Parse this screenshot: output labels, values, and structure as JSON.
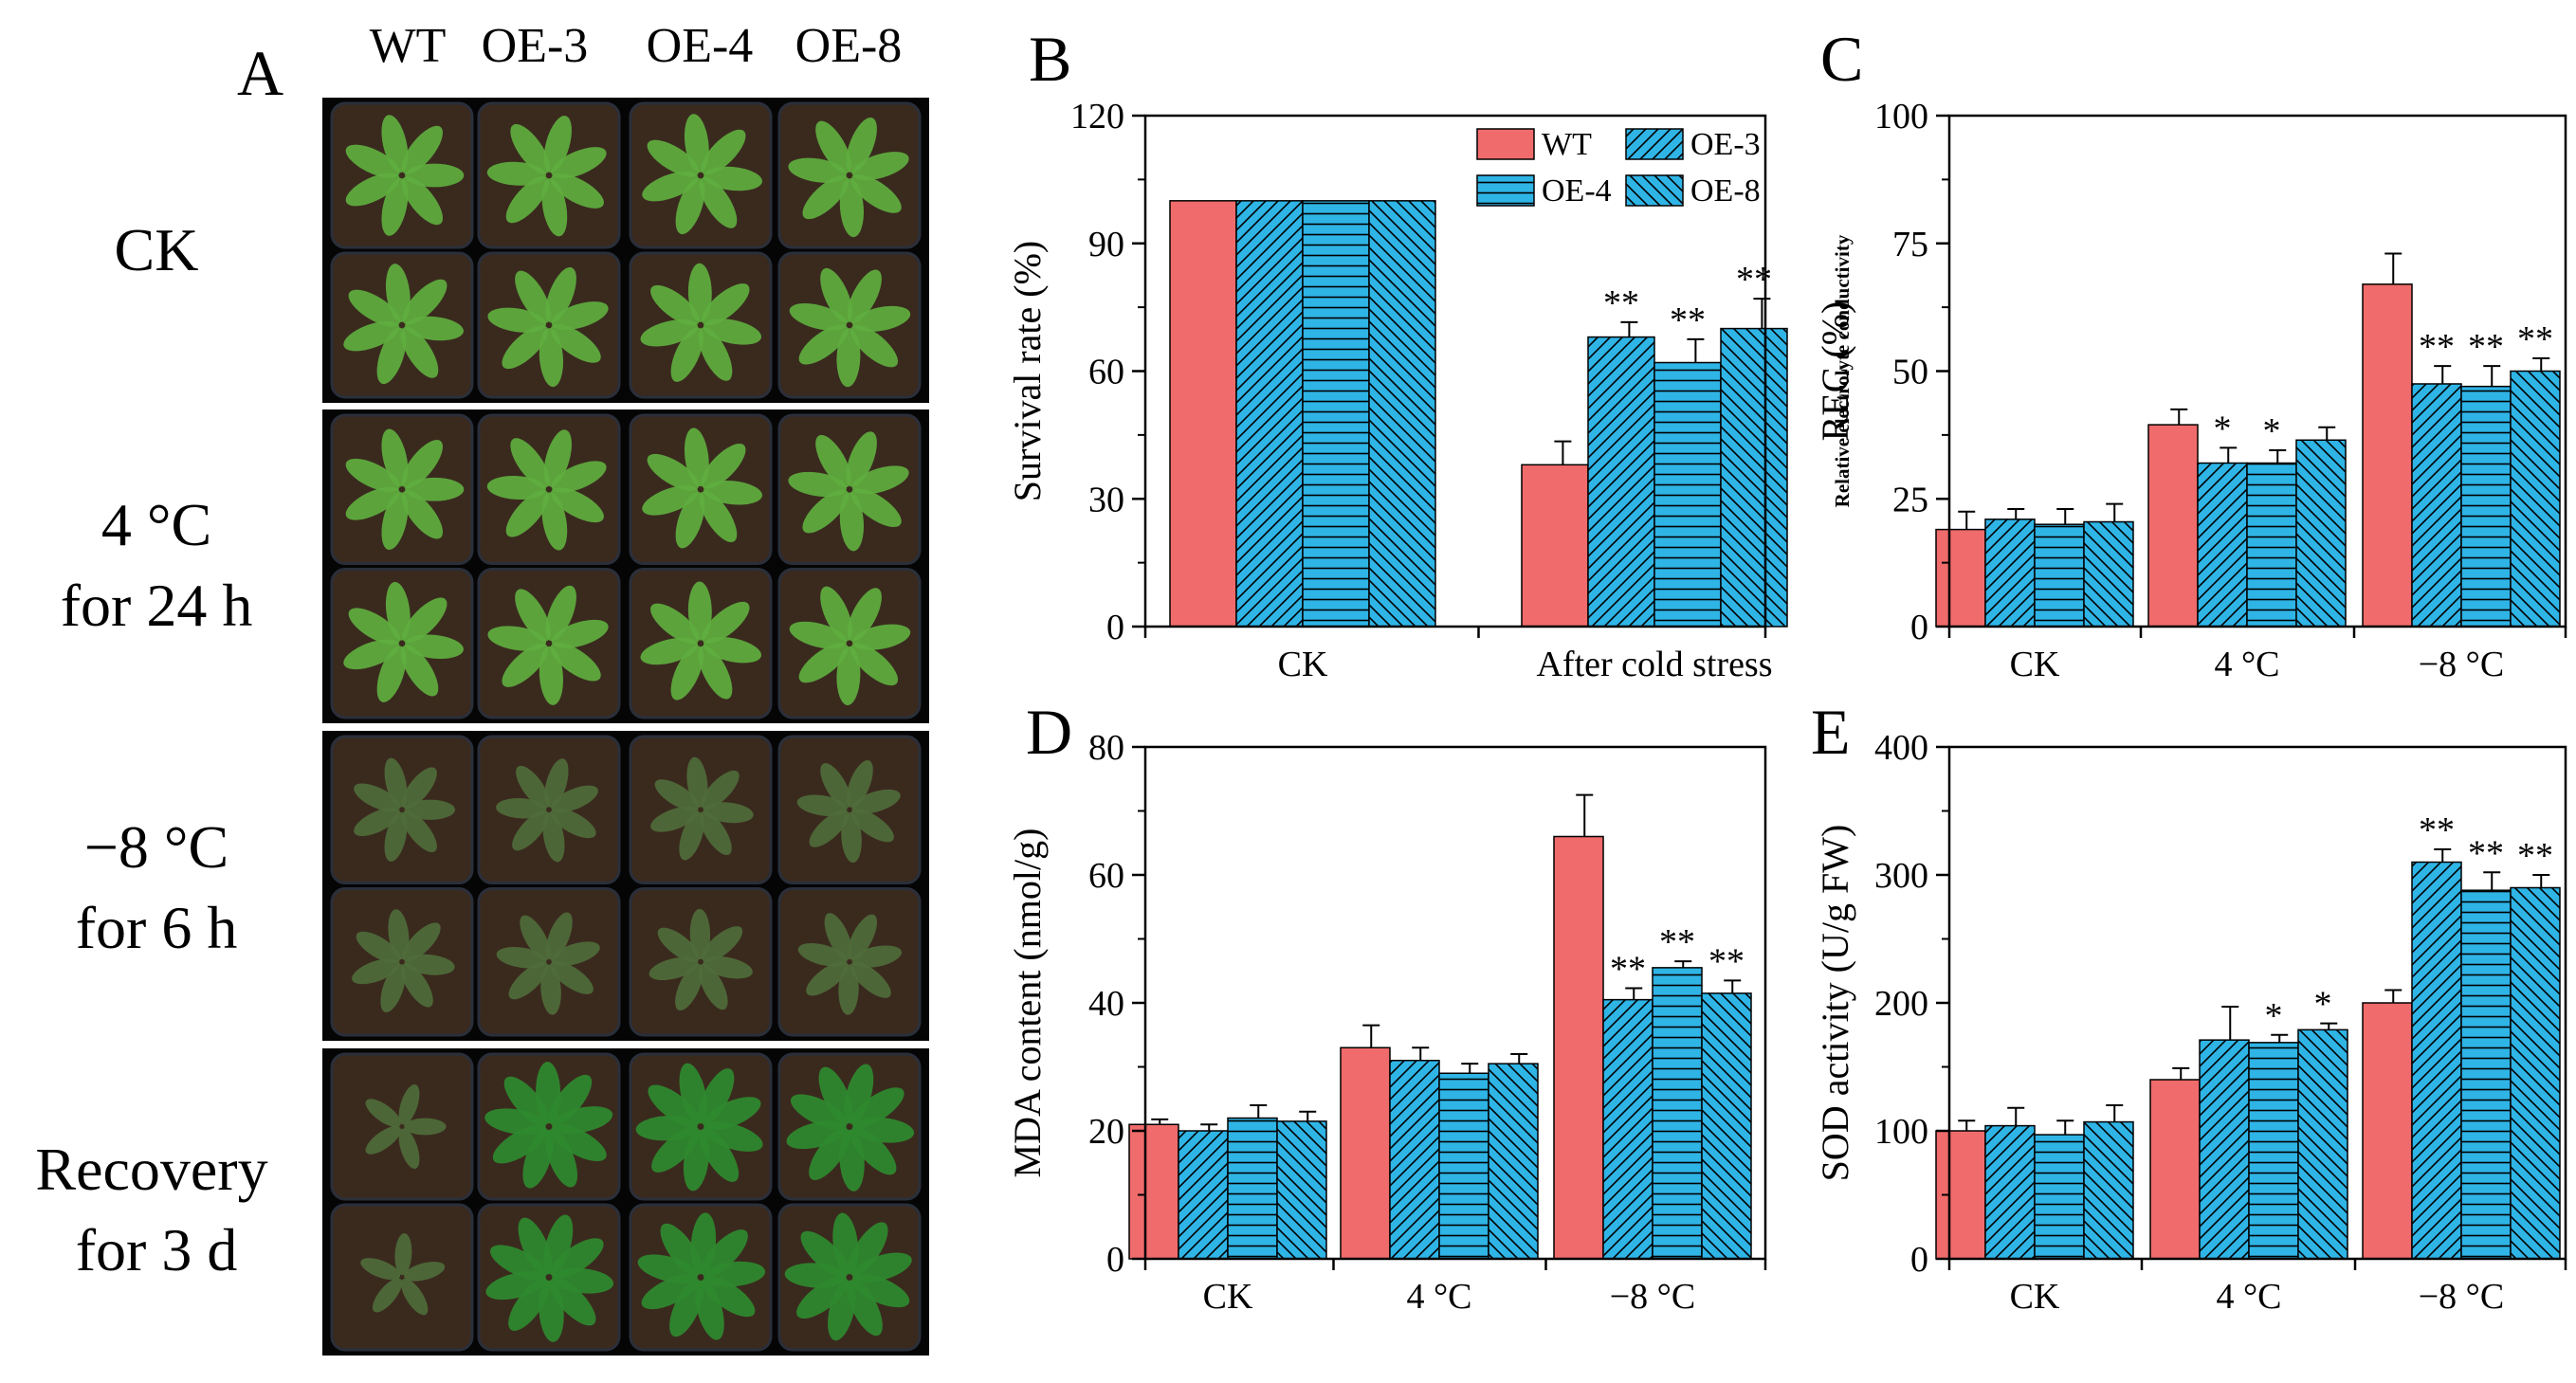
{
  "colors": {
    "wt": "#F06B6B",
    "oe": "#2FB4E6",
    "line": "#000000",
    "photo_bg": "#050505",
    "pot": "#3a2a1e",
    "plant_healthy": "#5fae3f",
    "plant_stress": "#4f6b3a"
  },
  "panel_a": {
    "letter": "A",
    "column_labels": [
      "WT",
      "OE-3",
      "OE-4",
      "OE-8"
    ],
    "rows": [
      {
        "lines": [
          "CK"
        ],
        "condition": "healthy"
      },
      {
        "lines": [
          "4 °C",
          "for 24 h"
        ],
        "condition": "healthy"
      },
      {
        "lines": [
          "−8 °C",
          "for 6 h"
        ],
        "condition": "stressed"
      },
      {
        "lines": [
          "Recovery",
          "for 3 d"
        ],
        "condition": "recovering"
      }
    ]
  },
  "chart_data": [
    {
      "panel": "B",
      "type": "bar",
      "title": "",
      "xlabel": "",
      "ylabel": "Survival rate (%)",
      "ylabel_sub": "",
      "ylim": [
        0,
        120
      ],
      "yticks": [
        0,
        30,
        60,
        90,
        120
      ],
      "categories": [
        "CK",
        "After cold stress"
      ],
      "series": [
        {
          "name": "WT",
          "values": [
            100,
            38
          ],
          "errors": [
            0,
            5.5
          ],
          "sig": [
            "",
            ""
          ]
        },
        {
          "name": "OE-3",
          "values": [
            100,
            68
          ],
          "errors": [
            0,
            3.5
          ],
          "sig": [
            "",
            "**"
          ]
        },
        {
          "name": "OE-4",
          "values": [
            100,
            62
          ],
          "errors": [
            0,
            5.5
          ],
          "sig": [
            "",
            "**"
          ]
        },
        {
          "name": "OE-8",
          "values": [
            100,
            70
          ],
          "errors": [
            0,
            7
          ],
          "sig": [
            "",
            "**"
          ]
        }
      ],
      "legend": {
        "position": "top-right",
        "entries": [
          "WT",
          "OE-3",
          "OE-4",
          "OE-8"
        ]
      }
    },
    {
      "panel": "C",
      "type": "bar",
      "title": "",
      "xlabel": "",
      "ylabel": "REC (%)",
      "ylabel_sub": "Relative electrolyte conductivity",
      "ylim": [
        0,
        100
      ],
      "yticks": [
        0,
        25,
        50,
        75,
        100
      ],
      "categories": [
        "CK",
        "4 °C",
        "−8 °C"
      ],
      "series": [
        {
          "name": "WT",
          "values": [
            19,
            39.5,
            67
          ],
          "errors": [
            3.5,
            3,
            6
          ],
          "sig": [
            "",
            "",
            ""
          ]
        },
        {
          "name": "OE-3",
          "values": [
            21,
            32,
            47.5
          ],
          "errors": [
            2,
            3,
            3.5
          ],
          "sig": [
            "",
            "*",
            "**"
          ]
        },
        {
          "name": "OE-4",
          "values": [
            20,
            32,
            47
          ],
          "errors": [
            3,
            2.5,
            4
          ],
          "sig": [
            "",
            "*",
            "**"
          ]
        },
        {
          "name": "OE-8",
          "values": [
            20.5,
            36.5,
            50
          ],
          "errors": [
            3.5,
            2.5,
            2.5
          ],
          "sig": [
            "",
            "",
            "**"
          ]
        }
      ]
    },
    {
      "panel": "D",
      "type": "bar",
      "title": "",
      "xlabel": "",
      "ylabel": "MDA content (nmol/g)",
      "ylabel_sub": "",
      "ylim": [
        0,
        80
      ],
      "yticks": [
        0,
        20,
        40,
        60,
        80
      ],
      "categories": [
        "CK",
        "4 °C",
        "−8 °C"
      ],
      "series": [
        {
          "name": "WT",
          "values": [
            21,
            33,
            66
          ],
          "errors": [
            0.8,
            3.5,
            6.5
          ],
          "sig": [
            "",
            "",
            ""
          ]
        },
        {
          "name": "OE-3",
          "values": [
            20,
            31,
            40.5
          ],
          "errors": [
            1,
            2,
            1.8
          ],
          "sig": [
            "",
            "",
            "**"
          ]
        },
        {
          "name": "OE-4",
          "values": [
            22,
            29,
            45.5
          ],
          "errors": [
            2,
            1.5,
            1
          ],
          "sig": [
            "",
            "",
            "**"
          ]
        },
        {
          "name": "OE-8",
          "values": [
            21.5,
            30.5,
            41.5
          ],
          "errors": [
            1.5,
            1.5,
            2
          ],
          "sig": [
            "",
            "",
            "**"
          ]
        }
      ]
    },
    {
      "panel": "E",
      "type": "bar",
      "title": "",
      "xlabel": "",
      "ylabel": "SOD activity (U/g FW)",
      "ylabel_sub": "",
      "ylim": [
        0,
        400
      ],
      "yticks": [
        0,
        100,
        200,
        300,
        400
      ],
      "categories": [
        "CK",
        "4 °C",
        "−8 °C"
      ],
      "series": [
        {
          "name": "WT",
          "values": [
            100,
            140,
            200
          ],
          "errors": [
            8,
            9,
            10
          ],
          "sig": [
            "",
            "",
            ""
          ]
        },
        {
          "name": "OE-3",
          "values": [
            104,
            171,
            310
          ],
          "errors": [
            14,
            26,
            10
          ],
          "sig": [
            "",
            "",
            "**"
          ]
        },
        {
          "name": "OE-4",
          "values": [
            97,
            169,
            288
          ],
          "errors": [
            11,
            6,
            14
          ],
          "sig": [
            "",
            "*",
            "**"
          ]
        },
        {
          "name": "OE-8",
          "values": [
            107,
            179,
            290
          ],
          "errors": [
            13,
            5,
            10
          ],
          "sig": [
            "",
            "*",
            "**"
          ]
        }
      ]
    }
  ]
}
